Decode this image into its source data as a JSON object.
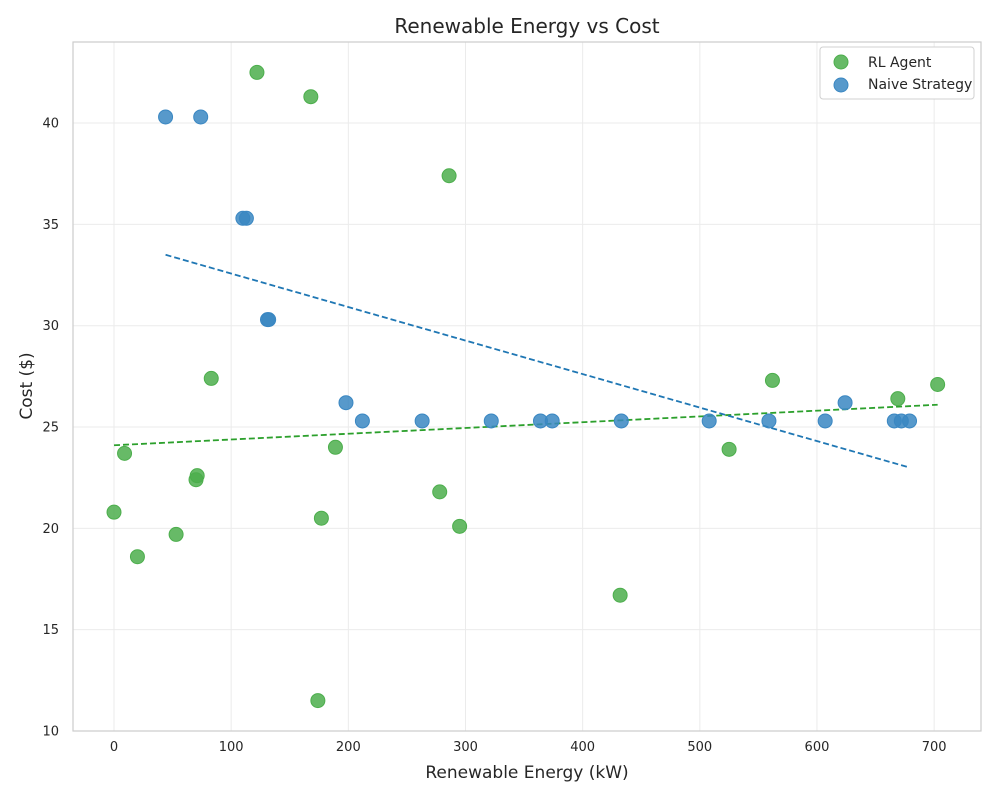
{
  "chart_data": {
    "type": "scatter",
    "title": "Renewable Energy vs Cost",
    "xlabel": "Renewable Energy (kW)",
    "ylabel": "Cost ($)",
    "xlim": [
      -35,
      740
    ],
    "ylim": [
      10,
      44
    ],
    "xticks": [
      0,
      100,
      200,
      300,
      400,
      500,
      600,
      700
    ],
    "yticks": [
      10,
      15,
      20,
      25,
      30,
      35,
      40
    ],
    "grid": true,
    "legend_position": "top-right",
    "series": [
      {
        "name": "RL Agent",
        "color": "#4cae4c",
        "trend_color": "#2ca02c",
        "points": [
          {
            "x": 0,
            "y": 20.8
          },
          {
            "x": 9,
            "y": 23.7
          },
          {
            "x": 20,
            "y": 18.6
          },
          {
            "x": 53,
            "y": 19.7
          },
          {
            "x": 70,
            "y": 22.4
          },
          {
            "x": 71,
            "y": 22.6
          },
          {
            "x": 83,
            "y": 27.4
          },
          {
            "x": 122,
            "y": 42.5
          },
          {
            "x": 168,
            "y": 41.3
          },
          {
            "x": 174,
            "y": 11.5
          },
          {
            "x": 177,
            "y": 20.5
          },
          {
            "x": 189,
            "y": 24.0
          },
          {
            "x": 278,
            "y": 21.8
          },
          {
            "x": 286,
            "y": 37.4
          },
          {
            "x": 295,
            "y": 20.1
          },
          {
            "x": 432,
            "y": 16.7
          },
          {
            "x": 525,
            "y": 23.9
          },
          {
            "x": 562,
            "y": 27.3
          },
          {
            "x": 669,
            "y": 26.4
          },
          {
            "x": 703,
            "y": 27.1
          }
        ],
        "trend": {
          "x": [
            0,
            703
          ],
          "y": [
            24.1,
            26.1
          ]
        }
      },
      {
        "name": "Naive Strategy",
        "color": "#3a87c2",
        "trend_color": "#1f77b4",
        "points": [
          {
            "x": 44,
            "y": 40.3
          },
          {
            "x": 74,
            "y": 40.3
          },
          {
            "x": 110,
            "y": 35.3
          },
          {
            "x": 113,
            "y": 35.3
          },
          {
            "x": 131,
            "y": 30.3
          },
          {
            "x": 132,
            "y": 30.3
          },
          {
            "x": 198,
            "y": 26.2
          },
          {
            "x": 212,
            "y": 25.3
          },
          {
            "x": 263,
            "y": 25.3
          },
          {
            "x": 322,
            "y": 25.3
          },
          {
            "x": 364,
            "y": 25.3
          },
          {
            "x": 374,
            "y": 25.3
          },
          {
            "x": 433,
            "y": 25.3
          },
          {
            "x": 508,
            "y": 25.3
          },
          {
            "x": 559,
            "y": 25.3
          },
          {
            "x": 607,
            "y": 25.3
          },
          {
            "x": 624,
            "y": 26.2
          },
          {
            "x": 666,
            "y": 25.3
          },
          {
            "x": 672,
            "y": 25.3
          },
          {
            "x": 679,
            "y": 25.3
          }
        ],
        "trend": {
          "x": [
            44,
            679
          ],
          "y": [
            33.5,
            23.0
          ]
        }
      }
    ]
  }
}
